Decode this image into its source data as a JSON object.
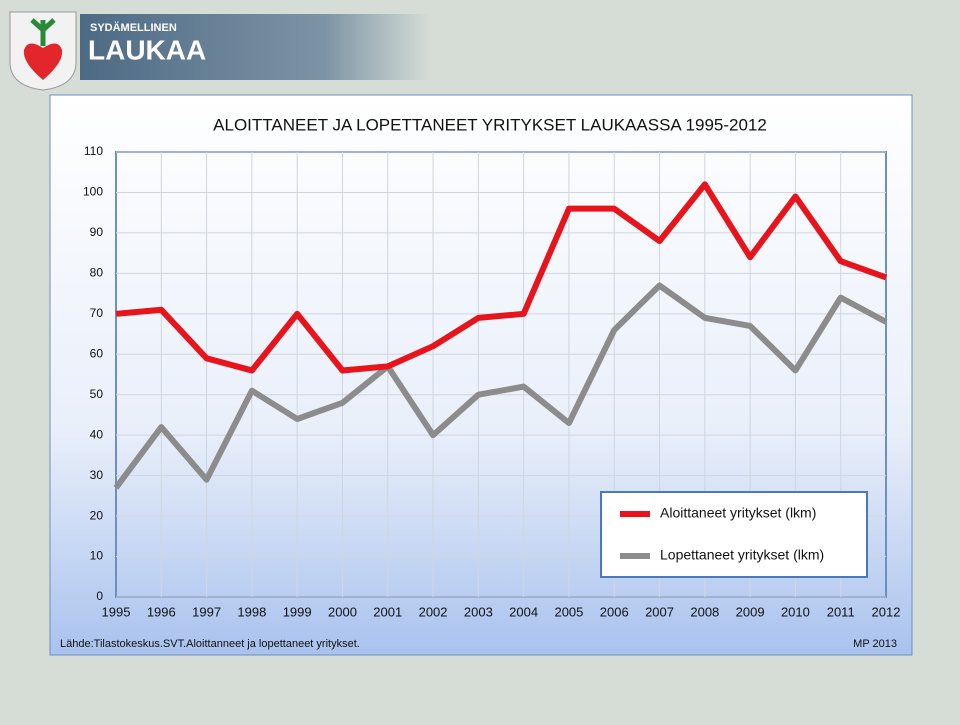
{
  "header": {
    "tagline": "SYDÄMELLINEN",
    "name": "LAUKAA"
  },
  "chart_data": {
    "type": "line",
    "title": "ALOITTANEET JA LOPETTANEET YRITYKSET LAUKAASSA 1995-2012",
    "categories": [
      "1995",
      "1996",
      "1997",
      "1998",
      "1999",
      "2000",
      "2001",
      "2002",
      "2003",
      "2004",
      "2005",
      "2006",
      "2007",
      "2008",
      "2009",
      "2010",
      "2011",
      "2012"
    ],
    "series": [
      {
        "name": "Aloittaneet yritykset (lkm)",
        "color": "#e8141b",
        "values": [
          70,
          71,
          59,
          56,
          70,
          56,
          57,
          62,
          69,
          70,
          96,
          96,
          88,
          102,
          84,
          99,
          83,
          79
        ]
      },
      {
        "name": "Lopettaneet yritykset (lkm)",
        "color": "#8c8c8c",
        "values": [
          27,
          42,
          29,
          51,
          44,
          48,
          57,
          40,
          50,
          52,
          43,
          66,
          77,
          69,
          67,
          56,
          74,
          68
        ]
      }
    ],
    "ylim": [
      0,
      110
    ],
    "yticks": [
      0,
      10,
      20,
      30,
      40,
      50,
      60,
      70,
      80,
      90,
      100,
      110
    ],
    "grid": true,
    "legend": "lower right"
  },
  "footer": {
    "source": "Lähde:Tilastokeskus.SVT.Aloittanneet ja lopettaneet yritykset.",
    "author": "MP 2013"
  }
}
